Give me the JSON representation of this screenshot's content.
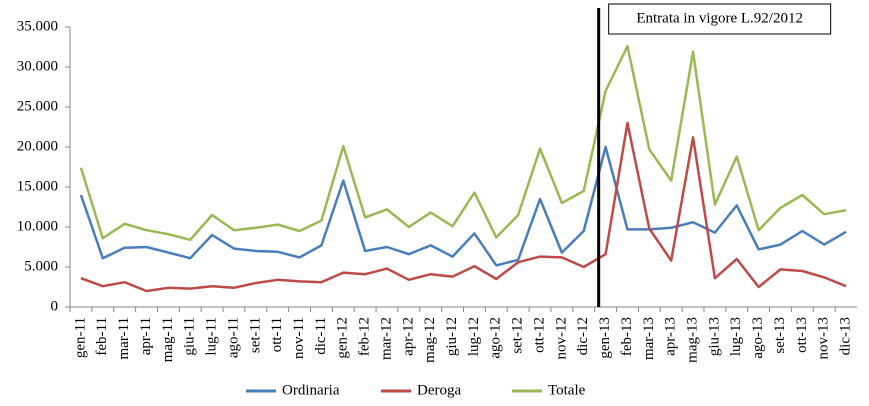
{
  "chart_data": {
    "type": "line",
    "categories": [
      "gen-11",
      "feb-11",
      "mar-11",
      "apr-11",
      "mag-11",
      "giu-11",
      "lug-11",
      "ago-11",
      "set-11",
      "ott-11",
      "nov-11",
      "dic-11",
      "gen-12",
      "feb-12",
      "mar-12",
      "apr-12",
      "mag-12",
      "giu-12",
      "lug-12",
      "ago-12",
      "set-12",
      "ott-12",
      "nov-12",
      "dic-12",
      "gen-13",
      "feb-13",
      "mar-13",
      "apr-13",
      "mag-13",
      "giu-13",
      "lug-13",
      "ago-13",
      "set-13",
      "ott-13",
      "nov-13",
      "dic-13"
    ],
    "series": [
      {
        "name": "Ordinaria",
        "color": "#4a7ebb",
        "values": [
          14000,
          6100,
          7400,
          7500,
          6800,
          6100,
          9000,
          7300,
          7000,
          6900,
          6200,
          7700,
          15800,
          7000,
          7500,
          6600,
          7700,
          6300,
          9200,
          5200,
          5900,
          13500,
          6800,
          9500,
          20000,
          9700,
          9700,
          9900,
          10600,
          9300,
          12700,
          7200,
          7800,
          9500,
          7800,
          9400
        ]
      },
      {
        "name": "Deroga",
        "color": "#be4b48",
        "values": [
          3600,
          2600,
          3100,
          2000,
          2400,
          2300,
          2600,
          2400,
          3000,
          3400,
          3200,
          3100,
          4300,
          4100,
          4800,
          3400,
          4100,
          3800,
          5100,
          3500,
          5600,
          6300,
          6200,
          5000,
          6600,
          23000,
          9800,
          5800,
          21200,
          3600,
          6000,
          2500,
          4700,
          4500,
          3700,
          2600
        ]
      },
      {
        "name": "Totale",
        "color": "#98b954",
        "values": [
          17400,
          8600,
          10400,
          9600,
          9100,
          8400,
          11500,
          9600,
          9900,
          10300,
          9500,
          10800,
          20100,
          11200,
          12200,
          10000,
          11800,
          10100,
          14300,
          8700,
          11500,
          19800,
          13000,
          14500,
          27000,
          32600,
          19700,
          15800,
          31900,
          12800,
          18800,
          9600,
          12400,
          14000,
          11600,
          12100
        ]
      }
    ],
    "ylim": [
      0,
      35000
    ],
    "yticks": [
      0,
      {
        "value": 5000,
        "label": "5.000"
      },
      {
        "value": 10000,
        "label": "10.000"
      },
      {
        "value": 15000,
        "label": "15.000"
      },
      {
        "value": 20000,
        "label": "20.000"
      },
      {
        "value": 25000,
        "label": "25.000"
      },
      {
        "value": 30000,
        "label": "30.000"
      },
      {
        "value": 35000,
        "label": "35.000"
      }
    ],
    "grid": false,
    "legend": "bottom",
    "annotation": {
      "text": "Entrata in vigore L.92/2012",
      "x": "gen-13"
    }
  }
}
